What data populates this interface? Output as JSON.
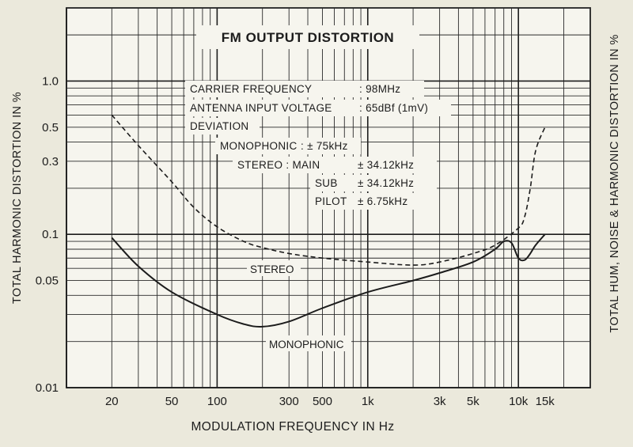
{
  "chart_data": {
    "type": "line",
    "title": "FM OUTPUT DISTORTION",
    "xlabel": "MODULATION FREQUENCY IN Hz",
    "ylabel": "TOTAL HARMONIC DISTORTION IN %",
    "ylabel_right": "TOTAL HUM, NOISE & HARMONIC DISTORTION IN %",
    "x_scale": "log",
    "y_scale": "log",
    "xlim": [
      10,
      30000
    ],
    "ylim": [
      0.01,
      3
    ],
    "grid": true,
    "x_ticks": [
      {
        "value": 20,
        "label": "20"
      },
      {
        "value": 50,
        "label": "50"
      },
      {
        "value": 100,
        "label": "100"
      },
      {
        "value": 300,
        "label": "300"
      },
      {
        "value": 500,
        "label": "500"
      },
      {
        "value": 1000,
        "label": "1k"
      },
      {
        "value": 3000,
        "label": "3k"
      },
      {
        "value": 5000,
        "label": "5k"
      },
      {
        "value": 10000,
        "label": "10k"
      },
      {
        "value": 15000,
        "label": "15k"
      }
    ],
    "y_ticks": [
      {
        "value": 1.0,
        "label": "1.0"
      },
      {
        "value": 0.5,
        "label": "0.5"
      },
      {
        "value": 0.3,
        "label": "0.3"
      },
      {
        "value": 0.1,
        "label": "0.1"
      },
      {
        "value": 0.05,
        "label": "0.05"
      },
      {
        "value": 0.01,
        "label": "0.01"
      }
    ],
    "annotations": [
      {
        "key": "carrier",
        "text": "CARRIER FREQUENCY",
        "value": ": 98MHz"
      },
      {
        "key": "antenna",
        "text": "ANTENNA INPUT VOLTAGE",
        "value": ": 65dBf (1mV)"
      },
      {
        "key": "deviation",
        "text": "DEVIATION",
        "value": ""
      },
      {
        "key": "mono_dev",
        "text": "MONOPHONIC",
        "value": ": ± 75kHz"
      },
      {
        "key": "stereo_main",
        "text": "STEREO : MAIN",
        "value": "± 34.12kHz"
      },
      {
        "key": "stereo_sub",
        "text": "SUB",
        "value": "± 34.12kHz"
      },
      {
        "key": "stereo_pilot",
        "text": "PILOT",
        "value": "± 6.75kHz"
      }
    ],
    "series": [
      {
        "name": "STEREO",
        "style": "dashed",
        "x": [
          20,
          30,
          50,
          70,
          100,
          150,
          200,
          300,
          500,
          1000,
          2000,
          3000,
          5000,
          7000,
          10000,
          11000,
          12000,
          13000,
          15000
        ],
        "y": [
          0.6,
          0.38,
          0.22,
          0.15,
          0.112,
          0.09,
          0.082,
          0.075,
          0.07,
          0.066,
          0.063,
          0.066,
          0.075,
          0.085,
          0.11,
          0.13,
          0.2,
          0.35,
          0.5
        ]
      },
      {
        "name": "MONOPHONIC",
        "style": "solid",
        "x": [
          20,
          30,
          50,
          100,
          150,
          200,
          300,
          500,
          1000,
          2000,
          3000,
          5000,
          7000,
          8000,
          9000,
          10000,
          11000,
          12000,
          13000,
          15000
        ],
        "y": [
          0.095,
          0.062,
          0.042,
          0.03,
          0.026,
          0.025,
          0.027,
          0.033,
          0.042,
          0.05,
          0.056,
          0.066,
          0.08,
          0.09,
          0.088,
          0.07,
          0.068,
          0.075,
          0.085,
          0.1
        ]
      }
    ]
  }
}
